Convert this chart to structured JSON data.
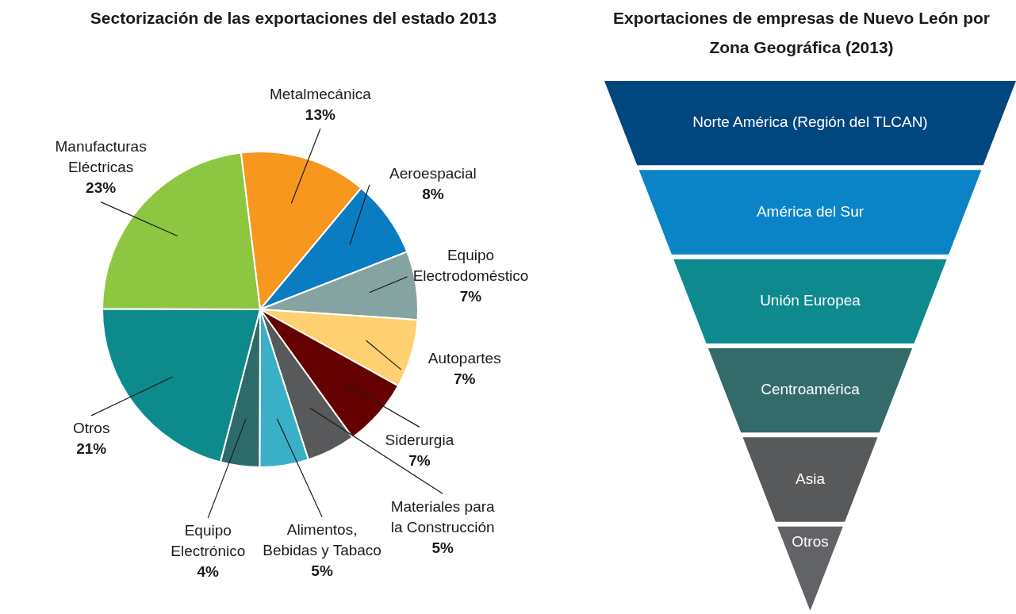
{
  "chart_data": [
    {
      "type": "pie",
      "title": "Sectorización de las exportaciones del estado 2013",
      "categories": [
        "Metalmecánica",
        "Aeroespacial",
        "Equipo Electrodoméstico",
        "Autopartes",
        "Siderurgia",
        "Materiales para la Construcción",
        "Alimentos, Bebidas y Tabaco",
        "Equipo Electrónico",
        "Otros",
        "Manufacturas Eléctricas"
      ],
      "values": [
        13,
        8,
        7,
        7,
        7,
        5,
        5,
        4,
        21,
        23
      ],
      "value_labels": [
        "13%",
        "8%",
        "7%",
        "7%",
        "7%",
        "5%",
        "5%",
        "4%",
        "21%",
        "23%"
      ],
      "colors": [
        "#f7971e",
        "#0a7dc2",
        "#85a3a0",
        "#ffd070",
        "#650000",
        "#58595b",
        "#3ab0c8",
        "#2d6b6b",
        "#0d8a8c",
        "#8dc641"
      ]
    },
    {
      "type": "other",
      "title": "Exportaciones de empresas de Nuevo León por Zona Geográfica (2013)",
      "categories": [
        "Norte América (Región del TLCAN)",
        "América del Sur",
        "Unión Europea",
        "Centroamérica",
        "Asia",
        "Otros"
      ],
      "colors": [
        "#00467f",
        "#0a84c6",
        "#0e8a8e",
        "#336b6b",
        "#58595b",
        "#626366"
      ]
    }
  ]
}
